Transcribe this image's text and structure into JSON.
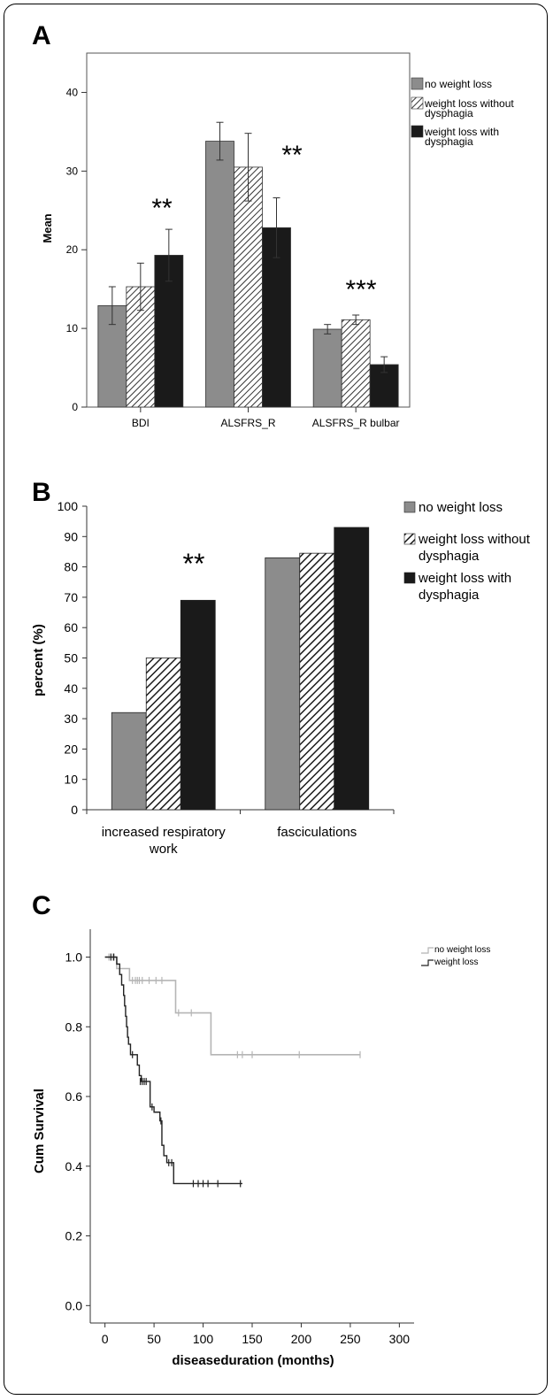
{
  "panels": {
    "a": {
      "letter": "A"
    },
    "b": {
      "letter": "B"
    },
    "c": {
      "letter": "C"
    }
  },
  "colors": {
    "grey": "#8c8c8c",
    "black": "#1a1a1a",
    "light_grey_line": "#b5b5b5",
    "dark_line": "#222222"
  },
  "chart_data": [
    {
      "type": "bar",
      "panel": "A",
      "categories": [
        "BDI",
        "ALSFRS_R",
        "ALSFRS_R bulbar"
      ],
      "series": [
        {
          "name": "no weight loss",
          "pattern": "grey",
          "values": [
            12.9,
            33.8,
            9.9
          ],
          "errors": [
            2.4,
            2.4,
            0.6
          ]
        },
        {
          "name": "weight loss without dysphagia",
          "pattern": "hatch",
          "values": [
            15.3,
            30.5,
            11.1
          ],
          "errors": [
            3.0,
            4.3,
            0.6
          ]
        },
        {
          "name": "weight loss with dysphagia",
          "pattern": "black",
          "values": [
            19.3,
            22.8,
            5.4
          ],
          "errors": [
            3.3,
            3.8,
            1.0
          ]
        }
      ],
      "xlabel": "",
      "ylabel": "Mean",
      "ylim": [
        0,
        45
      ],
      "yticks": [
        0,
        10,
        20,
        30,
        40
      ],
      "annotations": [
        "**",
        "**",
        "***"
      ],
      "legend": "right"
    },
    {
      "type": "bar",
      "panel": "B",
      "categories": [
        "increased respiratory work",
        "fasciculations"
      ],
      "category_lines": [
        [
          "increased respiratory",
          "work"
        ],
        [
          "fasciculations"
        ]
      ],
      "series": [
        {
          "name": "no weight loss",
          "pattern": "grey",
          "values": [
            32,
            83
          ]
        },
        {
          "name": "weight loss without dysphagia",
          "pattern": "hatch",
          "values": [
            50,
            84.5
          ]
        },
        {
          "name": "weight loss with dysphagia",
          "pattern": "black",
          "values": [
            69,
            93
          ]
        }
      ],
      "xlabel": "",
      "ylabel": "percent (%)",
      "ylim": [
        0,
        100
      ],
      "yticks": [
        0,
        10,
        20,
        30,
        40,
        50,
        60,
        70,
        80,
        90,
        100
      ],
      "annotations": [
        "**"
      ],
      "legend": "right"
    },
    {
      "type": "line",
      "panel": "C",
      "subtype": "kaplan-meier step",
      "xlabel": "diseaseduration (months)",
      "ylabel": "Cum Survival",
      "xlim": [
        -15,
        315
      ],
      "ylim": [
        -0.05,
        1.08
      ],
      "xticks": [
        0,
        50,
        100,
        150,
        200,
        250,
        300
      ],
      "yticks": [
        "0.0",
        "0.2",
        "0.4",
        "0.6",
        "0.8",
        "1.0"
      ],
      "legend": "top-right",
      "series": [
        {
          "name": "no weight loss",
          "color": "light",
          "steps": [
            [
              0,
              1.0
            ],
            [
              12,
              0.967
            ],
            [
              25,
              0.933
            ],
            [
              72,
              0.84
            ],
            [
              108,
              0.72
            ],
            [
              260,
              0.72
            ]
          ],
          "censors": [
            [
              4,
              1.0
            ],
            [
              8,
              1.0
            ],
            [
              28,
              0.933
            ],
            [
              31,
              0.933
            ],
            [
              33,
              0.933
            ],
            [
              35,
              0.933
            ],
            [
              38,
              0.933
            ],
            [
              45,
              0.933
            ],
            [
              52,
              0.933
            ],
            [
              58,
              0.933
            ],
            [
              75,
              0.84
            ],
            [
              88,
              0.84
            ],
            [
              135,
              0.72
            ],
            [
              140,
              0.72
            ],
            [
              150,
              0.72
            ],
            [
              198,
              0.72
            ],
            [
              260,
              0.72
            ]
          ]
        },
        {
          "name": "weight loss",
          "color": "dark",
          "steps": [
            [
              0,
              1.0
            ],
            [
              12,
              0.98
            ],
            [
              15,
              0.95
            ],
            [
              17,
              0.92
            ],
            [
              19,
              0.89
            ],
            [
              20,
              0.86
            ],
            [
              21,
              0.83
            ],
            [
              22,
              0.8
            ],
            [
              23,
              0.77
            ],
            [
              24,
              0.75
            ],
            [
              26,
              0.72
            ],
            [
              33,
              0.69
            ],
            [
              35,
              0.66
            ],
            [
              37,
              0.643
            ],
            [
              46,
              0.57
            ],
            [
              50,
              0.555
            ],
            [
              56,
              0.53
            ],
            [
              58,
              0.46
            ],
            [
              60,
              0.43
            ],
            [
              63,
              0.41
            ],
            [
              70,
              0.35
            ],
            [
              140,
              0.35
            ]
          ],
          "censors": [
            [
              6,
              1.0
            ],
            [
              9,
              1.0
            ],
            [
              28,
              0.72
            ],
            [
              36,
              0.643
            ],
            [
              38,
              0.643
            ],
            [
              40,
              0.643
            ],
            [
              42,
              0.643
            ],
            [
              48,
              0.57
            ],
            [
              57,
              0.53
            ],
            [
              65,
              0.41
            ],
            [
              68,
              0.41
            ],
            [
              90,
              0.35
            ],
            [
              95,
              0.35
            ],
            [
              100,
              0.35
            ],
            [
              105,
              0.35
            ],
            [
              115,
              0.35
            ],
            [
              138,
              0.35
            ]
          ]
        }
      ]
    }
  ]
}
